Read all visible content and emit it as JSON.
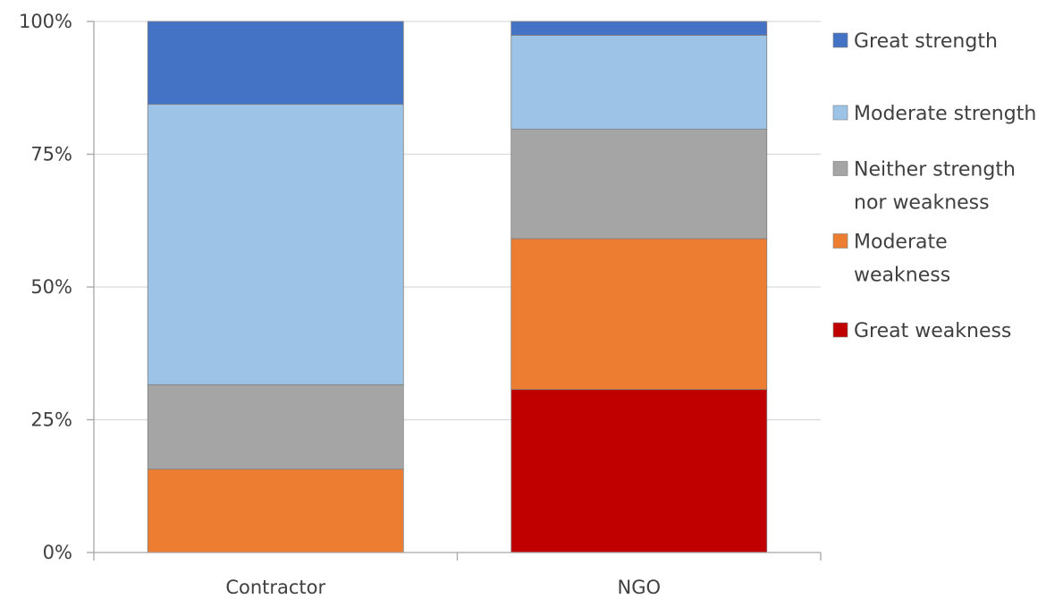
{
  "chart_data": {
    "type": "bar",
    "stacked": true,
    "percent": true,
    "title": "",
    "xlabel": "",
    "ylabel": "",
    "ylim": [
      0,
      100
    ],
    "y_ticks": [
      "0%",
      "25%",
      "50%",
      "75%",
      "100%"
    ],
    "categories": [
      "Contractor",
      "NGO"
    ],
    "grid": true,
    "legend_position": "right",
    "series": [
      {
        "name": "Great weakness",
        "values": [
          0,
          30.7
        ],
        "color": "#C00000"
      },
      {
        "name": "Moderate weakness",
        "values": [
          15.7,
          28.4
        ],
        "color": "#ED7D31"
      },
      {
        "name": "Neither strength nor weakness",
        "values": [
          15.9,
          20.6
        ],
        "color": "#A5A5A5"
      },
      {
        "name": "Moderate strength",
        "values": [
          52.8,
          17.7
        ],
        "color": "#9DC3E6"
      },
      {
        "name": "Great strength",
        "values": [
          15.6,
          2.6
        ],
        "color": "#4472C4"
      }
    ],
    "legend": [
      {
        "lines": [
          "Great strength"
        ],
        "color": "#4472C4"
      },
      {
        "lines": [
          "Moderate strength"
        ],
        "color": "#9DC3E6"
      },
      {
        "lines": [
          "Neither strength",
          "nor weakness"
        ],
        "color": "#A5A5A5"
      },
      {
        "lines": [
          "Moderate",
          "weakness"
        ],
        "color": "#ED7D31"
      },
      {
        "lines": [
          "Great weakness"
        ],
        "color": "#C00000"
      }
    ]
  }
}
